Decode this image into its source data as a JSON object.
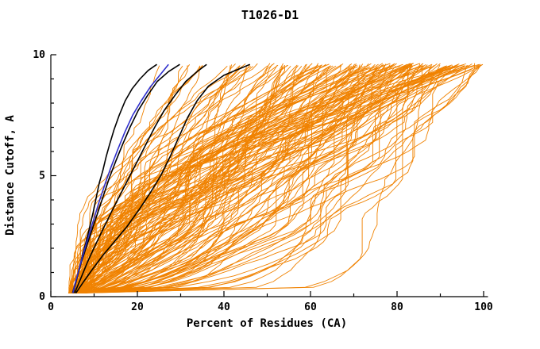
{
  "chart_data": {
    "type": "line",
    "title": "T1026-D1",
    "xlabel": "Percent of Residues (CA)",
    "ylabel": "Distance Cutoff, A",
    "xlim": [
      0,
      100
    ],
    "ylim": [
      0,
      10
    ],
    "x_ticks": [
      0,
      20,
      40,
      60,
      80,
      100
    ],
    "x_minor_ticks": [
      10,
      30,
      50,
      70,
      90
    ],
    "y_ticks": [
      0,
      5,
      10
    ],
    "y_minor_ticks": [
      1,
      2,
      3,
      4,
      6,
      7,
      8,
      9
    ],
    "grid": false,
    "legend": "none",
    "background": "#ffffff",
    "axis_color": "#000000",
    "ensemble": {
      "name": "model-ensemble",
      "color": "#f08200",
      "count": 165,
      "seed": 1337,
      "x_start_range": [
        4,
        8
      ],
      "x_end_range": [
        24,
        100
      ],
      "end_bias_power": 0.55,
      "shape_power_range": [
        0.35,
        2.1
      ],
      "flat_fraction": 0.05,
      "flat_power_range": [
        0.08,
        0.3
      ],
      "y_start": 0.15,
      "y_top_range": [
        9.5,
        9.65
      ],
      "steps": 40
    },
    "highlight_series": [
      {
        "name": "best-model-black-1",
        "color": "#000000",
        "points": [
          [
            5.2,
            0.15
          ],
          [
            5.8,
            0.6
          ],
          [
            6.5,
            1.1
          ],
          [
            7.3,
            1.7
          ],
          [
            8.2,
            2.3
          ],
          [
            9.0,
            2.9
          ],
          [
            9.8,
            3.5
          ],
          [
            10.5,
            4.1
          ],
          [
            11.2,
            4.7
          ],
          [
            12.0,
            5.2
          ],
          [
            12.8,
            5.8
          ],
          [
            13.6,
            6.3
          ],
          [
            14.6,
            6.9
          ],
          [
            15.8,
            7.5
          ],
          [
            17.2,
            8.1
          ],
          [
            18.8,
            8.6
          ],
          [
            20.6,
            9.0
          ],
          [
            22.5,
            9.35
          ],
          [
            24.5,
            9.6
          ]
        ]
      },
      {
        "name": "best-model-black-2",
        "color": "#000000",
        "points": [
          [
            5.0,
            0.15
          ],
          [
            5.9,
            0.7
          ],
          [
            7.0,
            1.4
          ],
          [
            8.3,
            2.1
          ],
          [
            9.6,
            2.8
          ],
          [
            10.9,
            3.5
          ],
          [
            12.2,
            4.2
          ],
          [
            13.5,
            4.9
          ],
          [
            15.0,
            5.6
          ],
          [
            16.6,
            6.3
          ],
          [
            18.3,
            7.0
          ],
          [
            20.2,
            7.7
          ],
          [
            22.3,
            8.3
          ],
          [
            24.6,
            8.9
          ],
          [
            27.2,
            9.3
          ],
          [
            29.8,
            9.6
          ]
        ]
      },
      {
        "name": "best-model-black-3",
        "color": "#000000",
        "points": [
          [
            5.5,
            0.15
          ],
          [
            6.8,
            0.7
          ],
          [
            8.4,
            1.4
          ],
          [
            10.2,
            2.1
          ],
          [
            12.1,
            2.8
          ],
          [
            14.0,
            3.5
          ],
          [
            16.0,
            4.2
          ],
          [
            18.0,
            4.9
          ],
          [
            20.0,
            5.6
          ],
          [
            22.0,
            6.3
          ],
          [
            24.0,
            7.0
          ],
          [
            26.2,
            7.7
          ],
          [
            28.6,
            8.3
          ],
          [
            31.2,
            8.9
          ],
          [
            33.8,
            9.3
          ],
          [
            36.0,
            9.6
          ]
        ]
      },
      {
        "name": "best-model-black-4",
        "color": "#000000",
        "points": [
          [
            5.8,
            0.15
          ],
          [
            7.5,
            0.6
          ],
          [
            9.5,
            1.1
          ],
          [
            12.0,
            1.7
          ],
          [
            14.8,
            2.3
          ],
          [
            17.6,
            2.9
          ],
          [
            20.4,
            3.6
          ],
          [
            23.0,
            4.3
          ],
          [
            25.4,
            5.0
          ],
          [
            27.6,
            5.8
          ],
          [
            29.6,
            6.6
          ],
          [
            31.6,
            7.4
          ],
          [
            33.8,
            8.1
          ],
          [
            36.4,
            8.7
          ],
          [
            40.0,
            9.15
          ],
          [
            44.0,
            9.45
          ],
          [
            46.0,
            9.6
          ]
        ]
      },
      {
        "name": "reference-model-blue",
        "color": "#3030cc",
        "points": [
          [
            5.1,
            0.15
          ],
          [
            5.7,
            0.6
          ],
          [
            6.6,
            1.2
          ],
          [
            7.7,
            1.9
          ],
          [
            8.9,
            2.6
          ],
          [
            10.1,
            3.3
          ],
          [
            11.3,
            4.0
          ],
          [
            12.6,
            4.7
          ],
          [
            14.0,
            5.4
          ],
          [
            15.5,
            6.1
          ],
          [
            17.1,
            6.8
          ],
          [
            18.9,
            7.5
          ],
          [
            20.9,
            8.1
          ],
          [
            23.1,
            8.7
          ],
          [
            25.4,
            9.2
          ],
          [
            27.2,
            9.6
          ]
        ]
      }
    ]
  }
}
